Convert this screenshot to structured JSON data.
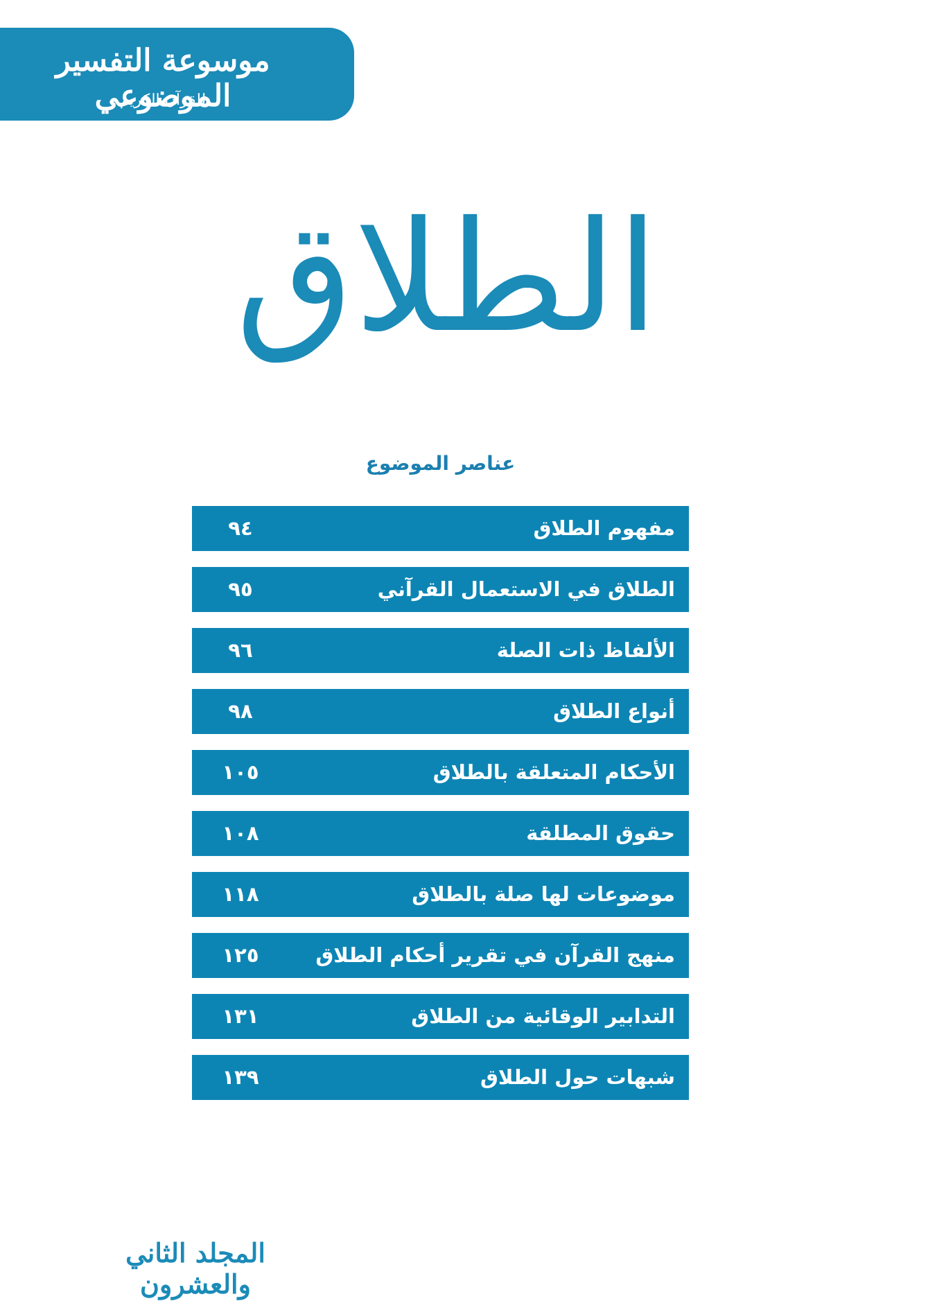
{
  "header": {
    "series": "موسوعة التفسير الموضوعي",
    "subtitle": "للقرآن الكريم"
  },
  "title": "الطلاق",
  "toc": {
    "heading": "عناصر الموضوع",
    "rows": [
      {
        "title": "مفهوم الطلاق",
        "page": "٩٤"
      },
      {
        "title": "الطلاق في الاستعمال القرآني",
        "page": "٩٥"
      },
      {
        "title": "الألفاظ ذات الصلة",
        "page": "٩٦"
      },
      {
        "title": "أنواع الطلاق",
        "page": "٩٨"
      },
      {
        "title": "الأحكام المتعلقة بالطلاق",
        "page": "١٠٥"
      },
      {
        "title": "حقوق المطلقة",
        "page": "١٠٨"
      },
      {
        "title": "موضوعات لها صلة بالطلاق",
        "page": "١١٨"
      },
      {
        "title": "منهج القرآن في تقرير أحكام الطلاق",
        "page": "١٢٥"
      },
      {
        "title": "التدابير الوقائية من الطلاق",
        "page": "١٣١"
      },
      {
        "title": "شبهات حول الطلاق",
        "page": "١٣٩"
      }
    ]
  },
  "footer": {
    "volume": "المجلد الثاني والعشرون"
  }
}
